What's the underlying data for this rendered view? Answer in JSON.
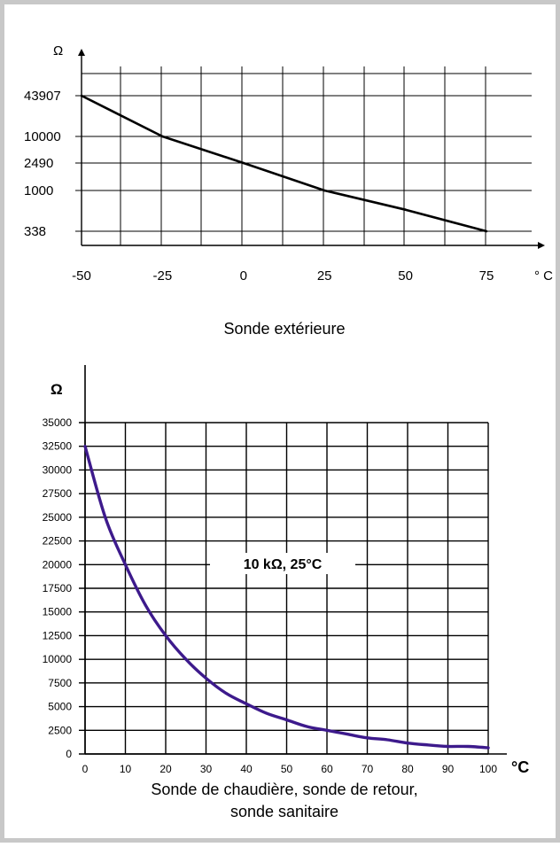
{
  "chart_data": [
    {
      "type": "line",
      "title": "Sonde extérieure",
      "ylabel": "Ω",
      "xlabel": "° C",
      "x_ticks": [
        "-50",
        "-25",
        "0",
        "25",
        "50",
        "75"
      ],
      "y_ticks": [
        "338",
        "1000",
        "2490",
        "10000",
        "43907"
      ],
      "xlim": [
        -50,
        75
      ],
      "grid": true,
      "series": [
        {
          "values": [
            {
              "x": -50,
              "y": 43907
            },
            {
              "x": -25,
              "y": 10000
            },
            {
              "x": 0,
              "y": 2490
            },
            {
              "x": 25,
              "y": 1000
            },
            {
              "x": 50,
              "y": 600
            },
            {
              "x": 75,
              "y": 338
            }
          ]
        }
      ],
      "color": "#000000"
    },
    {
      "type": "line",
      "title": "Sonde de chaudière, sonde de retour,",
      "title_line2": "sonde sanitaire",
      "ylabel": "Ω",
      "xlabel": "°C",
      "x_ticks": [
        "0",
        "10",
        "20",
        "30",
        "40",
        "50",
        "60",
        "70",
        "80",
        "90",
        "100"
      ],
      "y_ticks": [
        "0",
        "2500",
        "5000",
        "7500",
        "10000",
        "12500",
        "15000",
        "17500",
        "20000",
        "22500",
        "25000",
        "27500",
        "30000",
        "32500",
        "35000"
      ],
      "xlim": [
        0,
        100
      ],
      "ylim": [
        0,
        35000
      ],
      "grid": true,
      "annotation": "10 kΩ, 25°C",
      "series": [
        {
          "values": [
            {
              "x": 0,
              "y": 32500
            },
            {
              "x": 5,
              "y": 25000
            },
            {
              "x": 10,
              "y": 20000
            },
            {
              "x": 15,
              "y": 15700
            },
            {
              "x": 20,
              "y": 12500
            },
            {
              "x": 25,
              "y": 10000
            },
            {
              "x": 30,
              "y": 8000
            },
            {
              "x": 35,
              "y": 6400
            },
            {
              "x": 40,
              "y": 5300
            },
            {
              "x": 45,
              "y": 4300
            },
            {
              "x": 50,
              "y": 3600
            },
            {
              "x": 55,
              "y": 2900
            },
            {
              "x": 60,
              "y": 2500
            },
            {
              "x": 65,
              "y": 2100
            },
            {
              "x": 70,
              "y": 1700
            },
            {
              "x": 75,
              "y": 1500
            },
            {
              "x": 80,
              "y": 1150
            },
            {
              "x": 85,
              "y": 950
            },
            {
              "x": 90,
              "y": 800
            },
            {
              "x": 95,
              "y": 800
            },
            {
              "x": 100,
              "y": 650
            }
          ]
        }
      ],
      "color": "#3d1a8c"
    }
  ]
}
